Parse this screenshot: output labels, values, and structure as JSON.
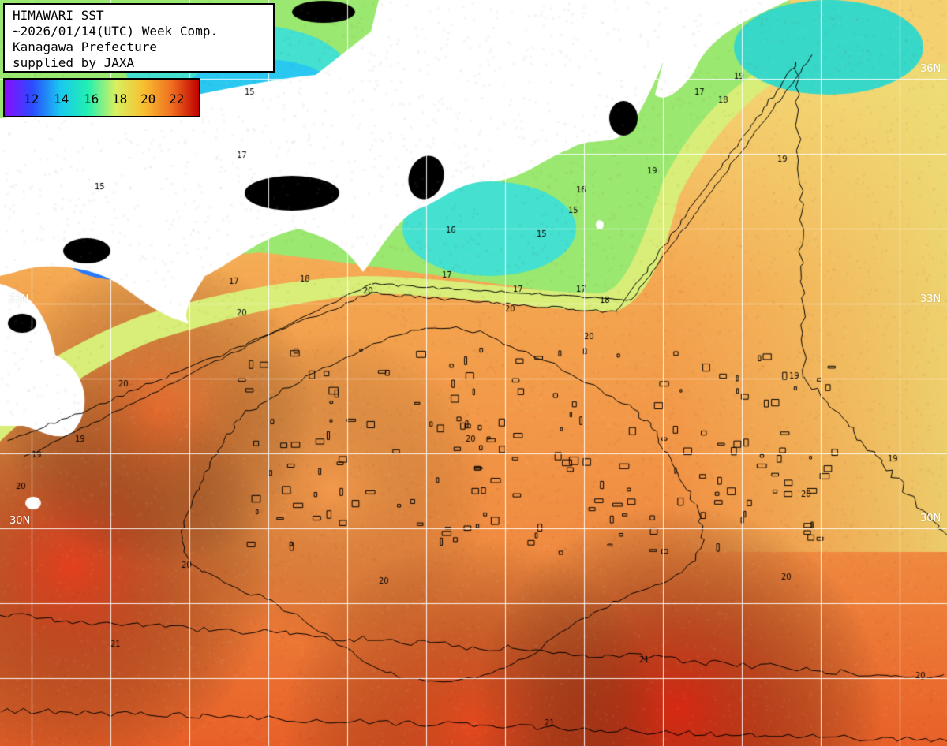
{
  "header": {
    "lines": [
      "HIMAWARI SST",
      "~2026/01/14(UTC) Week Comp.",
      "Kanagawa Prefecture",
      "supplied by JAXA"
    ]
  },
  "legend": {
    "ticks": [
      "12",
      "14",
      "16",
      "18",
      "20",
      "22"
    ],
    "stops": [
      "#8a0cff",
      "#2a4cff",
      "#19c8f0",
      "#22f0b0",
      "#d8f060",
      "#f8c030",
      "#f07020",
      "#c00000"
    ]
  },
  "map": {
    "lat_labels": [
      "36N",
      "33N",
      "33N",
      "30N",
      "30N"
    ],
    "contour_labels": [
      "15",
      "16",
      "17",
      "18",
      "19",
      "20",
      "21"
    ],
    "colors": {
      "land": "#ffffff",
      "no_data": "#000000",
      "grid": "#ffffff",
      "contour": "#000000"
    }
  }
}
